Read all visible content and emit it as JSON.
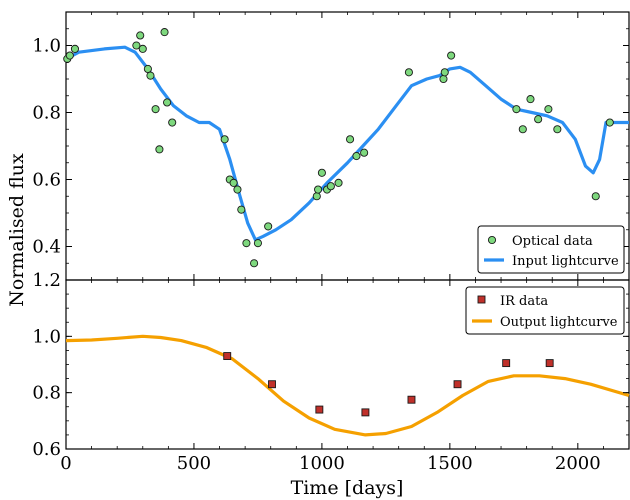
{
  "chart_data": [
    {
      "type": "scatter",
      "title": "",
      "xlabel": "",
      "ylabel": "Normalised flux",
      "xlim": [
        0,
        2200
      ],
      "ylim": [
        0.3,
        1.1
      ],
      "yticks": [
        0.4,
        0.6,
        0.8,
        1.0
      ],
      "ytick_labels": [
        "0.4",
        "0.6",
        "0.8",
        "1.0"
      ],
      "legend_position": "lower-right",
      "legend": [
        "Optical data",
        "Input lightcurve"
      ],
      "colors": {
        "points": "#7ed87e",
        "point_edge": "#1a1a1a",
        "line": "#2b8ff2"
      },
      "series": [
        {
          "name": "Optical data",
          "type": "scatter",
          "points": [
            [
              5,
              0.96
            ],
            [
              15,
              0.97
            ],
            [
              35,
              0.99
            ],
            [
              275,
              1.0
            ],
            [
              290,
              1.03
            ],
            [
              300,
              0.99
            ],
            [
              320,
              0.93
            ],
            [
              330,
              0.91
            ],
            [
              350,
              0.81
            ],
            [
              365,
              0.69
            ],
            [
              385,
              1.04
            ],
            [
              395,
              0.83
            ],
            [
              415,
              0.77
            ],
            [
              620,
              0.72
            ],
            [
              640,
              0.6
            ],
            [
              655,
              0.59
            ],
            [
              670,
              0.57
            ],
            [
              685,
              0.51
            ],
            [
              705,
              0.41
            ],
            [
              735,
              0.35
            ],
            [
              750,
              0.41
            ],
            [
              790,
              0.46
            ],
            [
              980,
              0.55
            ],
            [
              985,
              0.57
            ],
            [
              1000,
              0.62
            ],
            [
              1020,
              0.57
            ],
            [
              1035,
              0.58
            ],
            [
              1065,
              0.59
            ],
            [
              1110,
              0.72
            ],
            [
              1135,
              0.67
            ],
            [
              1165,
              0.68
            ],
            [
              1340,
              0.92
            ],
            [
              1475,
              0.9
            ],
            [
              1480,
              0.92
            ],
            [
              1505,
              0.97
            ],
            [
              1760,
              0.81
            ],
            [
              1785,
              0.75
            ],
            [
              1815,
              0.84
            ],
            [
              1845,
              0.78
            ],
            [
              1885,
              0.81
            ],
            [
              1920,
              0.75
            ],
            [
              2070,
              0.55
            ],
            [
              2125,
              0.77
            ]
          ]
        },
        {
          "name": "Input lightcurve",
          "type": "line",
          "points": [
            [
              0,
              0.96
            ],
            [
              50,
              0.98
            ],
            [
              150,
              0.99
            ],
            [
              230,
              0.995
            ],
            [
              270,
              0.98
            ],
            [
              320,
              0.93
            ],
            [
              370,
              0.87
            ],
            [
              420,
              0.82
            ],
            [
              470,
              0.79
            ],
            [
              520,
              0.77
            ],
            [
              560,
              0.77
            ],
            [
              600,
              0.75
            ],
            [
              640,
              0.66
            ],
            [
              680,
              0.55
            ],
            [
              710,
              0.47
            ],
            [
              740,
              0.42
            ],
            [
              770,
              0.43
            ],
            [
              820,
              0.45
            ],
            [
              880,
              0.48
            ],
            [
              950,
              0.53
            ],
            [
              1020,
              0.59
            ],
            [
              1100,
              0.65
            ],
            [
              1160,
              0.7
            ],
            [
              1220,
              0.75
            ],
            [
              1290,
              0.82
            ],
            [
              1350,
              0.88
            ],
            [
              1410,
              0.9
            ],
            [
              1460,
              0.91
            ],
            [
              1500,
              0.93
            ],
            [
              1540,
              0.935
            ],
            [
              1580,
              0.92
            ],
            [
              1640,
              0.88
            ],
            [
              1700,
              0.84
            ],
            [
              1760,
              0.81
            ],
            [
              1820,
              0.8
            ],
            [
              1880,
              0.79
            ],
            [
              1940,
              0.77
            ],
            [
              1990,
              0.72
            ],
            [
              2030,
              0.64
            ],
            [
              2060,
              0.62
            ],
            [
              2085,
              0.66
            ],
            [
              2110,
              0.77
            ],
            [
              2150,
              0.77
            ],
            [
              2200,
              0.77
            ]
          ]
        }
      ]
    },
    {
      "type": "scatter",
      "title": "",
      "xlabel": "Time [days]",
      "ylabel": "",
      "xlim": [
        0,
        2200
      ],
      "ylim": [
        0.6,
        1.2
      ],
      "xticks": [
        0,
        500,
        1000,
        1500,
        2000
      ],
      "xtick_labels": [
        "0",
        "500",
        "1000",
        "1500",
        "2000"
      ],
      "yticks": [
        0.6,
        0.8,
        1.0,
        1.2
      ],
      "ytick_labels": [
        "0.6",
        "0.8",
        "1.0",
        "1.2"
      ],
      "legend_position": "upper-right",
      "legend": [
        "IR data",
        "Output lightcurve"
      ],
      "colors": {
        "points": "#c0302a",
        "point_edge": "#1a1a1a",
        "line": "#f5a000"
      },
      "series": [
        {
          "name": "IR data",
          "type": "scatter",
          "points": [
            [
              630,
              0.93
            ],
            [
              805,
              0.83
            ],
            [
              990,
              0.74
            ],
            [
              1170,
              0.73
            ],
            [
              1350,
              0.775
            ],
            [
              1530,
              0.83
            ],
            [
              1720,
              0.905
            ],
            [
              1890,
              0.905
            ]
          ]
        },
        {
          "name": "Output lightcurve",
          "type": "line",
          "points": [
            [
              0,
              0.985
            ],
            [
              100,
              0.987
            ],
            [
              200,
              0.993
            ],
            [
              300,
              1.0
            ],
            [
              370,
              0.996
            ],
            [
              450,
              0.985
            ],
            [
              550,
              0.96
            ],
            [
              650,
              0.92
            ],
            [
              750,
              0.85
            ],
            [
              850,
              0.77
            ],
            [
              950,
              0.71
            ],
            [
              1050,
              0.67
            ],
            [
              1170,
              0.65
            ],
            [
              1250,
              0.655
            ],
            [
              1350,
              0.68
            ],
            [
              1450,
              0.73
            ],
            [
              1550,
              0.79
            ],
            [
              1650,
              0.84
            ],
            [
              1750,
              0.86
            ],
            [
              1850,
              0.86
            ],
            [
              1950,
              0.85
            ],
            [
              2050,
              0.83
            ],
            [
              2200,
              0.79
            ]
          ]
        }
      ]
    }
  ]
}
